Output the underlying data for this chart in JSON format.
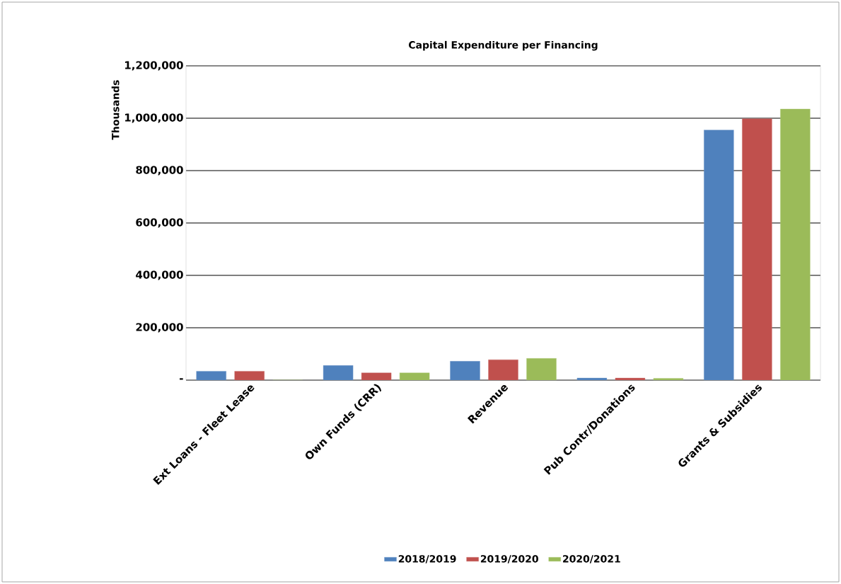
{
  "chart_data": {
    "type": "bar",
    "title": "Capital Expenditure per Financing",
    "ylabel": "Thousands",
    "categories": [
      "Ext Loans - Fleet Lease",
      "Own Funds (CRR)",
      "Revenue",
      "Pub Contr/Donations",
      "Grants & Subsidies"
    ],
    "series": [
      {
        "name": "2018/2019",
        "color": "#4f81bd",
        "values": [
          34000,
          56000,
          72000,
          8000,
          955000
        ]
      },
      {
        "name": "2019/2020",
        "color": "#c0504d",
        "values": [
          34000,
          28000,
          78000,
          8000,
          998000
        ]
      },
      {
        "name": "2020/2021",
        "color": "#9bbb59",
        "values": [
          0,
          28000,
          83000,
          7000,
          1035000
        ]
      }
    ],
    "ylim": [
      0,
      1200000
    ],
    "yticks": [
      {
        "value": 0,
        "label": "-"
      },
      {
        "value": 200000,
        "label": "200,000"
      },
      {
        "value": 400000,
        "label": "400,000"
      },
      {
        "value": 600000,
        "label": "600,000"
      },
      {
        "value": 800000,
        "label": "800,000"
      },
      {
        "value": 1000000,
        "label": "1,000,000"
      },
      {
        "value": 1200000,
        "label": "1,200,000"
      }
    ],
    "grid": "y",
    "legend": "bottom"
  }
}
